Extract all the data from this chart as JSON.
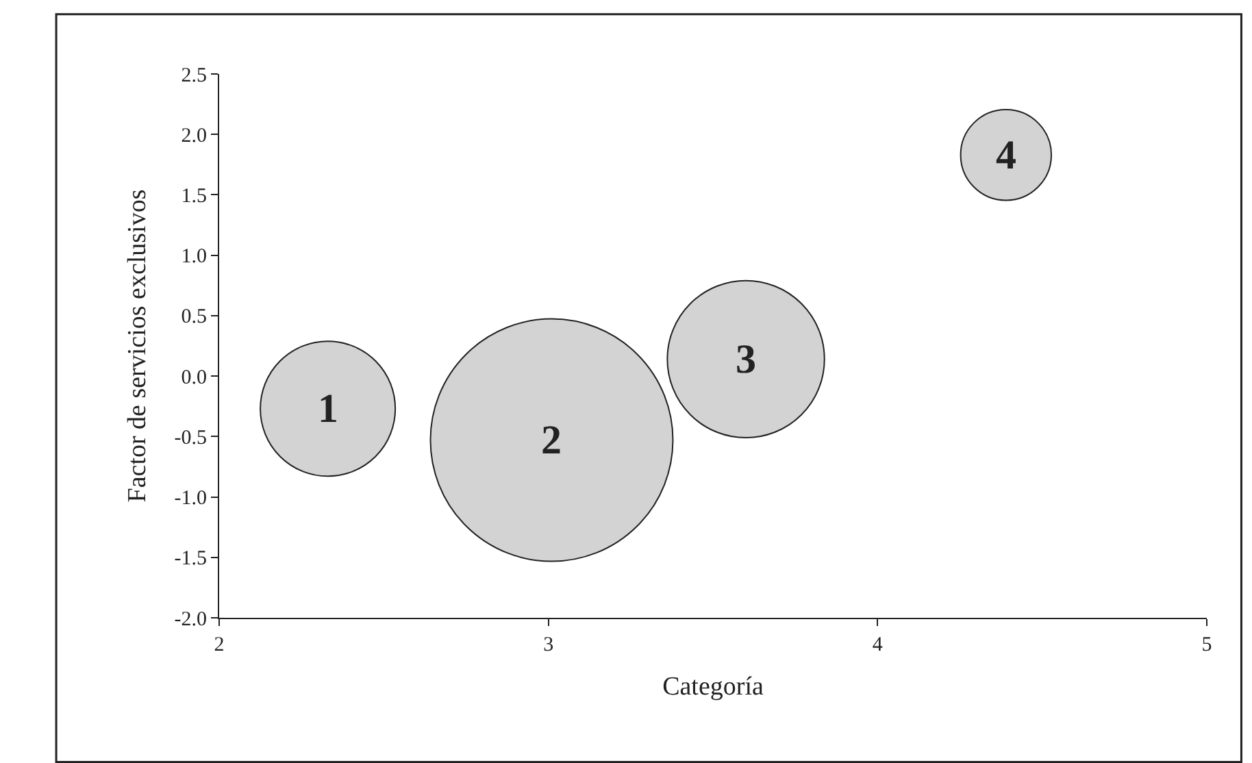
{
  "chart_data": {
    "type": "bubble",
    "xlabel": "Categoría",
    "ylabel": "Factor de servicios exclusivos",
    "x": [
      2.33,
      3.01,
      3.6,
      4.39
    ],
    "values": [
      -0.27,
      -0.53,
      0.14,
      1.83
    ],
    "sizes": [
      0.31,
      1,
      0.42,
      0.14
    ],
    "color": "#d3d3d3",
    "xlim": [
      2,
      5
    ],
    "xticks": [
      2,
      3,
      4,
      5
    ],
    "ylim": [
      -2.0,
      2.5
    ],
    "yticks": [
      {
        "value": -2.0,
        "label": "-2.0"
      },
      {
        "value": -1.5,
        "label": "-1.5"
      },
      {
        "value": -1.0,
        "label": "-1.0"
      },
      {
        "value": -0.5,
        "label": "-0.5"
      },
      {
        "value": 0.0,
        "label": "0.0"
      },
      {
        "value": 0.5,
        "label": "0.5"
      },
      {
        "value": 1.0,
        "label": "1.0"
      },
      {
        "value": 1.5,
        "label": "1.5"
      },
      {
        "value": 2.0,
        "label": "2.0"
      },
      {
        "value": 2.5,
        "label": "2.5"
      }
    ],
    "legend": false,
    "annotations": [
      {
        "text": "1",
        "x": 2.33,
        "y": -0.27
      },
      {
        "text": "2",
        "x": 3.01,
        "y": -0.53
      },
      {
        "text": "3",
        "x": 3.6,
        "y": 0.14
      },
      {
        "text": "4",
        "x": 4.39,
        "y": 1.83
      }
    ]
  }
}
